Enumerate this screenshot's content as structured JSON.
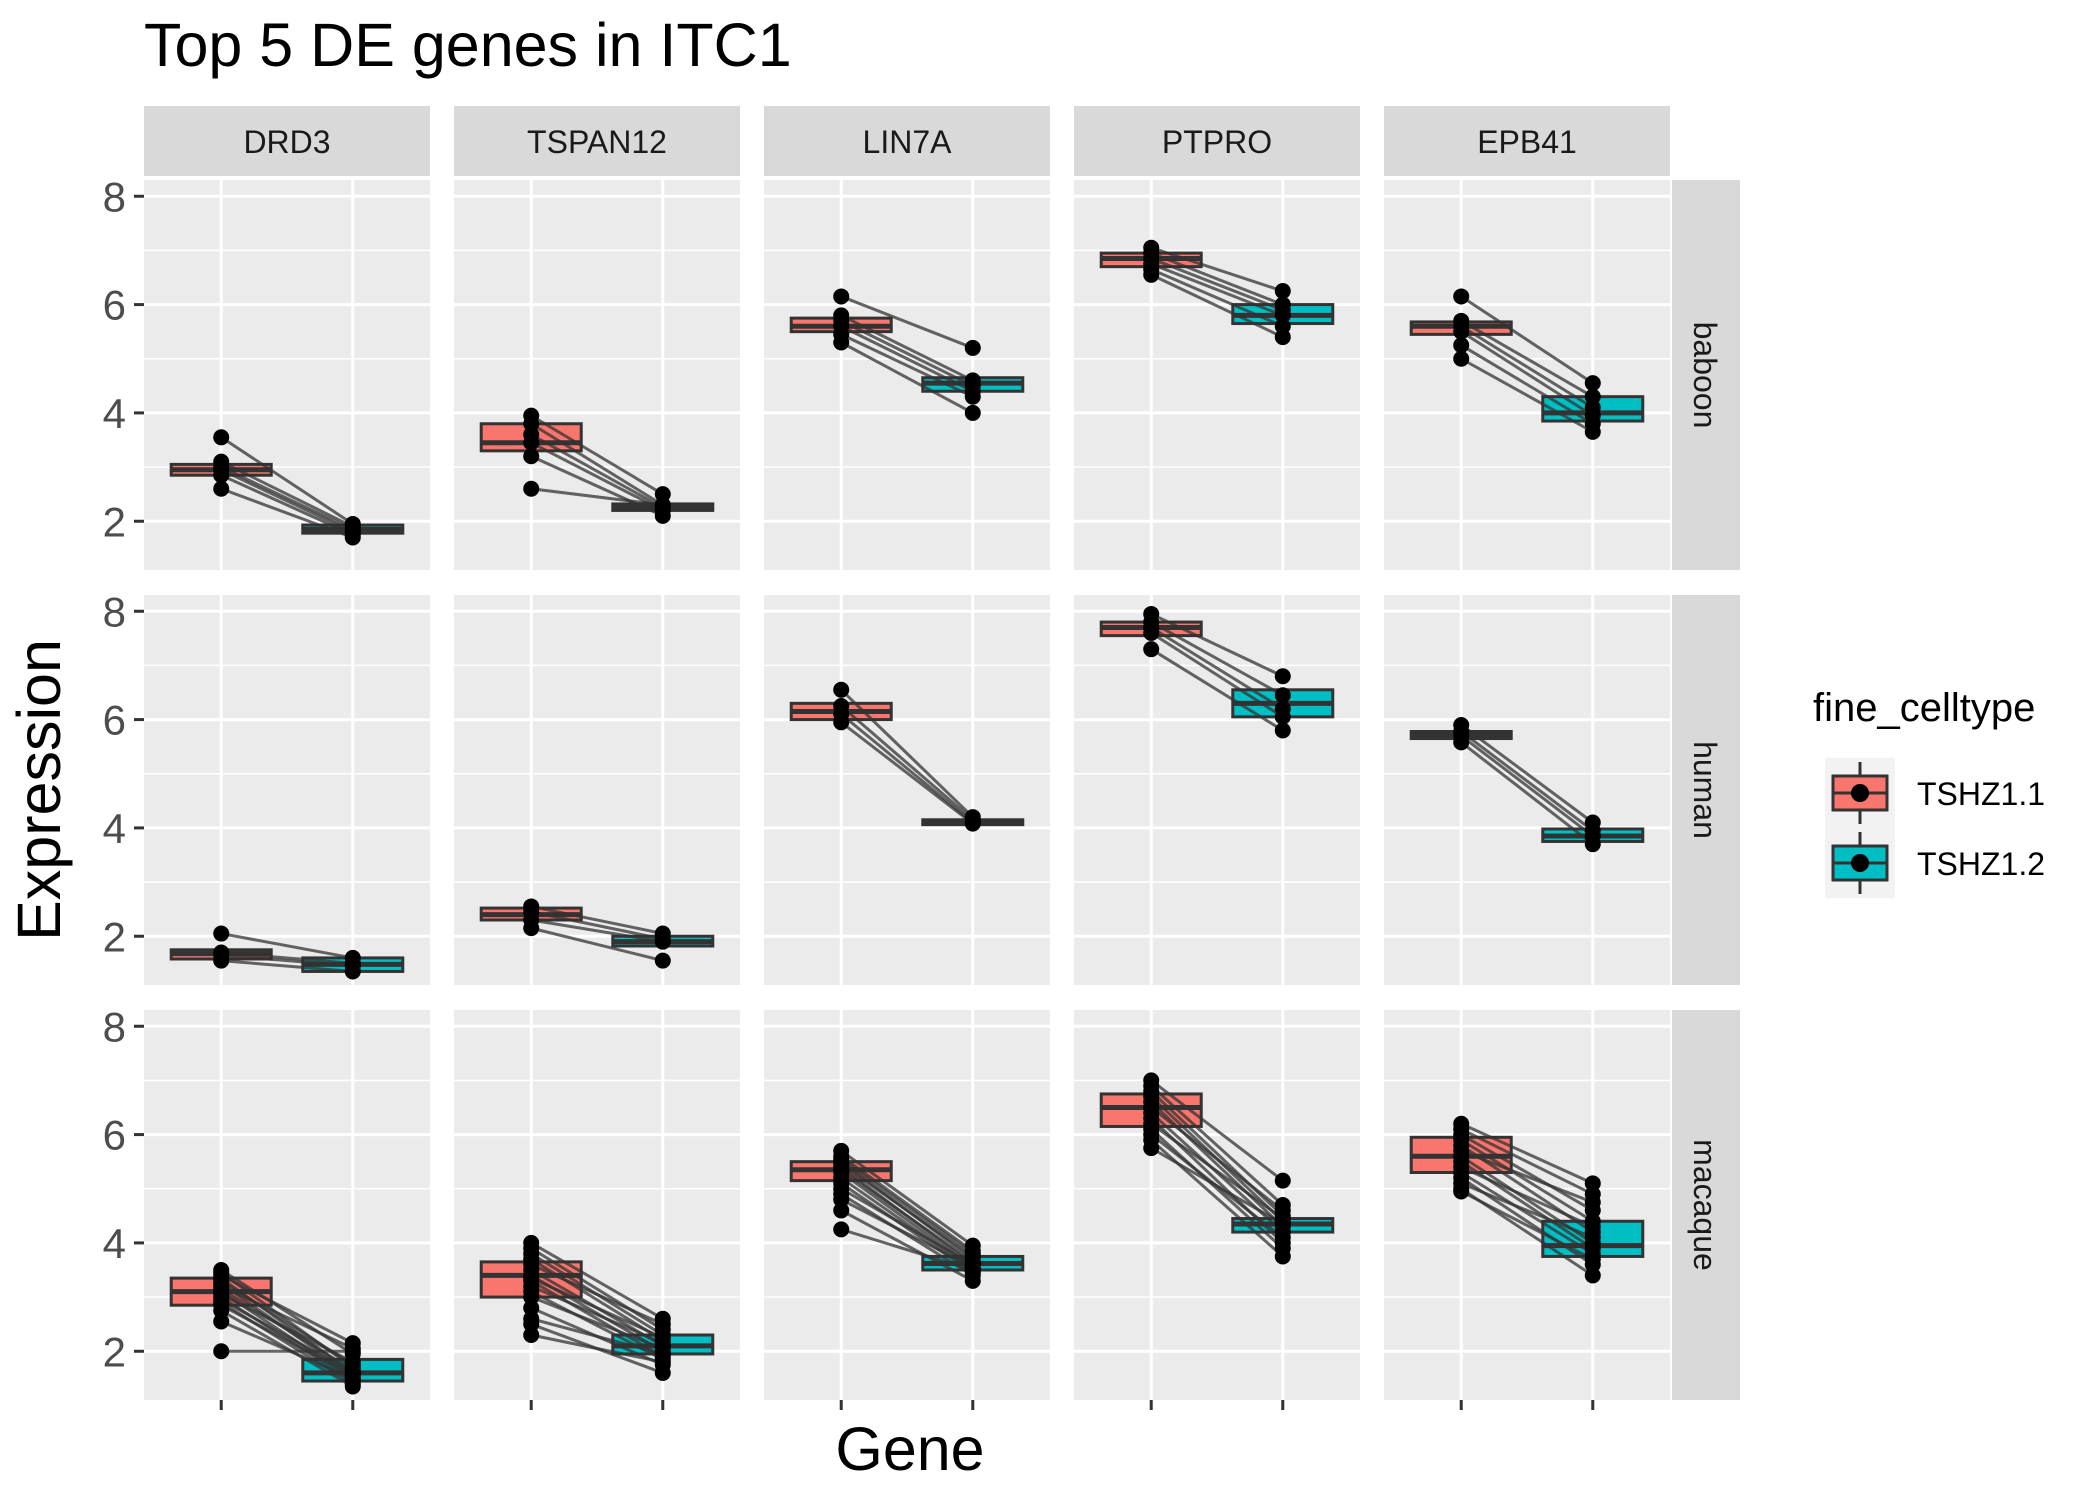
{
  "chart_data": {
    "type": "boxplot",
    "title": "Top 5 DE genes in ITC1",
    "xlabel": "Gene",
    "ylabel": "Expression",
    "ylim": [
      1.1,
      8.3
    ],
    "y_ticks": [
      2,
      4,
      6,
      8
    ],
    "y_tick_labels": [
      "2",
      "4",
      "6",
      "8"
    ],
    "genes": [
      "DRD3",
      "TSPAN12",
      "LIN7A",
      "PTPRO",
      "EPB41"
    ],
    "species": [
      "baboon",
      "human",
      "macaque"
    ],
    "legend": {
      "title": "fine_celltype",
      "position": "right",
      "entries": [
        {
          "label": "TSHZ1.1",
          "color": "#F8766D"
        },
        {
          "label": "TSHZ1.2",
          "color": "#00BFC4"
        }
      ]
    },
    "colors": {
      "panel_bg": "#EBEBEB",
      "strip_bg": "#D9D9D9",
      "grid": "#FFFFFF",
      "box_outline": "#333333",
      "point": "#000000",
      "line": "#333333"
    },
    "panels": {
      "baboon": {
        "DRD3": {
          "box1": {
            "q1": 2.85,
            "median": 2.95,
            "q3": 3.05
          },
          "box2": {
            "q1": 1.78,
            "median": 1.85,
            "q3": 1.93
          },
          "pairs": [
            [
              3.55,
              1.95
            ],
            [
              3.1,
              1.9
            ],
            [
              3.0,
              1.85
            ],
            [
              2.95,
              1.8
            ],
            [
              2.85,
              1.75
            ],
            [
              2.6,
              1.7
            ]
          ]
        },
        "TSPAN12": {
          "box1": {
            "q1": 3.3,
            "median": 3.45,
            "q3": 3.8
          },
          "box2": {
            "q1": 2.2,
            "median": 2.25,
            "q3": 2.32
          },
          "pairs": [
            [
              3.95,
              2.5
            ],
            [
              3.8,
              2.3
            ],
            [
              3.6,
              2.25
            ],
            [
              3.45,
              2.2
            ],
            [
              3.2,
              2.1
            ],
            [
              2.6,
              2.3
            ]
          ]
        },
        "LIN7A": {
          "box1": {
            "q1": 5.5,
            "median": 5.6,
            "q3": 5.75
          },
          "box2": {
            "q1": 4.4,
            "median": 4.55,
            "q3": 4.65
          },
          "pairs": [
            [
              6.15,
              5.2
            ],
            [
              5.8,
              4.6
            ],
            [
              5.7,
              4.5
            ],
            [
              5.6,
              4.4
            ],
            [
              5.45,
              4.3
            ],
            [
              5.3,
              4.0
            ]
          ]
        },
        "PTPRO": {
          "box1": {
            "q1": 6.7,
            "median": 6.85,
            "q3": 6.95
          },
          "box2": {
            "q1": 5.65,
            "median": 5.8,
            "q3": 6.0
          },
          "pairs": [
            [
              7.05,
              6.25
            ],
            [
              6.95,
              6.0
            ],
            [
              6.85,
              5.9
            ],
            [
              6.75,
              5.8
            ],
            [
              6.65,
              5.6
            ],
            [
              6.55,
              5.4
            ]
          ]
        },
        "EPB41": {
          "box1": {
            "q1": 5.45,
            "median": 5.6,
            "q3": 5.68
          },
          "box2": {
            "q1": 3.85,
            "median": 4.0,
            "q3": 4.3
          },
          "pairs": [
            [
              6.15,
              4.55
            ],
            [
              5.7,
              4.3
            ],
            [
              5.6,
              4.1
            ],
            [
              5.5,
              3.95
            ],
            [
              5.25,
              3.8
            ],
            [
              5.0,
              3.65
            ]
          ]
        }
      },
      "human": {
        "DRD3": {
          "box1": {
            "q1": 1.58,
            "median": 1.68,
            "q3": 1.75
          },
          "box2": {
            "q1": 1.35,
            "median": 1.48,
            "q3": 1.6
          },
          "pairs": [
            [
              2.05,
              1.6
            ],
            [
              1.7,
              1.5
            ],
            [
              1.65,
              1.45
            ],
            [
              1.55,
              1.35
            ]
          ]
        },
        "TSPAN12": {
          "box1": {
            "q1": 2.3,
            "median": 2.4,
            "q3": 2.52
          },
          "box2": {
            "q1": 1.82,
            "median": 1.9,
            "q3": 2.0
          },
          "pairs": [
            [
              2.55,
              2.05
            ],
            [
              2.45,
              1.95
            ],
            [
              2.3,
              1.9
            ],
            [
              2.15,
              1.55
            ]
          ]
        },
        "LIN7A": {
          "box1": {
            "q1": 6.0,
            "median": 6.15,
            "q3": 6.3
          },
          "box2": {
            "q1": 4.06,
            "median": 4.1,
            "q3": 4.15
          },
          "pairs": [
            [
              6.55,
              4.2
            ],
            [
              6.25,
              4.15
            ],
            [
              6.1,
              4.1
            ],
            [
              5.95,
              4.08
            ]
          ]
        },
        "PTPRO": {
          "box1": {
            "q1": 7.55,
            "median": 7.7,
            "q3": 7.8
          },
          "box2": {
            "q1": 6.05,
            "median": 6.3,
            "q3": 6.55
          },
          "pairs": [
            [
              7.95,
              6.8
            ],
            [
              7.8,
              6.45
            ],
            [
              7.7,
              6.2
            ],
            [
              7.6,
              6.05
            ],
            [
              7.3,
              5.8
            ]
          ]
        },
        "EPB41": {
          "box1": {
            "q1": 5.65,
            "median": 5.72,
            "q3": 5.78
          },
          "box2": {
            "q1": 3.75,
            "median": 3.85,
            "q3": 3.98
          },
          "pairs": [
            [
              5.9,
              4.1
            ],
            [
              5.78,
              3.95
            ],
            [
              5.7,
              3.85
            ],
            [
              5.58,
              3.7
            ]
          ]
        }
      },
      "macaque": {
        "DRD3": {
          "box1": {
            "q1": 2.85,
            "median": 3.1,
            "q3": 3.35
          },
          "box2": {
            "q1": 1.45,
            "median": 1.6,
            "q3": 1.85
          },
          "pairs": [
            [
              3.5,
              1.95
            ],
            [
              3.45,
              1.7
            ],
            [
              3.4,
              2.15
            ],
            [
              3.35,
              1.6
            ],
            [
              3.3,
              1.75
            ],
            [
              3.25,
              1.55
            ],
            [
              3.2,
              2.05
            ],
            [
              3.15,
              1.65
            ],
            [
              3.1,
              1.5
            ],
            [
              3.05,
              1.8
            ],
            [
              3.0,
              1.45
            ],
            [
              2.95,
              1.6
            ],
            [
              2.9,
              1.4
            ],
            [
              2.85,
              1.55
            ],
            [
              2.75,
              1.35
            ],
            [
              2.55,
              1.5
            ],
            [
              2.0,
              2.0
            ]
          ]
        },
        "TSPAN12": {
          "box1": {
            "q1": 3.0,
            "median": 3.4,
            "q3": 3.65
          },
          "box2": {
            "q1": 1.95,
            "median": 2.1,
            "q3": 2.3
          },
          "pairs": [
            [
              4.0,
              2.6
            ],
            [
              3.9,
              2.4
            ],
            [
              3.8,
              2.3
            ],
            [
              3.7,
              2.2
            ],
            [
              3.6,
              2.5
            ],
            [
              3.5,
              2.1
            ],
            [
              3.4,
              2.0
            ],
            [
              3.35,
              2.25
            ],
            [
              3.3,
              1.9
            ],
            [
              3.2,
              2.15
            ],
            [
              3.1,
              1.85
            ],
            [
              3.0,
              2.05
            ],
            [
              2.8,
              1.75
            ],
            [
              2.6,
              1.95
            ],
            [
              2.5,
              1.6
            ],
            [
              2.3,
              1.8
            ]
          ]
        },
        "LIN7A": {
          "box1": {
            "q1": 5.15,
            "median": 5.35,
            "q3": 5.5
          },
          "box2": {
            "q1": 3.5,
            "median": 3.62,
            "q3": 3.75
          },
          "pairs": [
            [
              5.7,
              3.95
            ],
            [
              5.6,
              3.85
            ],
            [
              5.55,
              3.8
            ],
            [
              5.5,
              3.7
            ],
            [
              5.45,
              3.75
            ],
            [
              5.4,
              3.6
            ],
            [
              5.35,
              3.65
            ],
            [
              5.3,
              3.55
            ],
            [
              5.2,
              3.5
            ],
            [
              5.1,
              3.45
            ],
            [
              5.0,
              3.6
            ],
            [
              4.9,
              3.4
            ],
            [
              4.8,
              3.55
            ],
            [
              4.6,
              3.3
            ],
            [
              4.25,
              3.5
            ]
          ]
        },
        "PTPRO": {
          "box1": {
            "q1": 6.15,
            "median": 6.5,
            "q3": 6.75
          },
          "box2": {
            "q1": 4.2,
            "median": 4.35,
            "q3": 4.45
          },
          "pairs": [
            [
              7.0,
              5.15
            ],
            [
              6.9,
              4.7
            ],
            [
              6.8,
              4.5
            ],
            [
              6.7,
              4.4
            ],
            [
              6.6,
              4.3
            ],
            [
              6.5,
              4.6
            ],
            [
              6.4,
              4.2
            ],
            [
              6.3,
              4.0
            ],
            [
              6.2,
              4.45
            ],
            [
              6.1,
              3.9
            ],
            [
              6.0,
              4.1
            ],
            [
              5.9,
              3.75
            ],
            [
              5.75,
              4.35
            ]
          ]
        },
        "EPB41": {
          "box1": {
            "q1": 5.3,
            "median": 5.6,
            "q3": 5.95
          },
          "box2": {
            "q1": 3.75,
            "median": 3.95,
            "q3": 4.4
          },
          "pairs": [
            [
              6.2,
              5.1
            ],
            [
              6.1,
              4.9
            ],
            [
              6.0,
              4.6
            ],
            [
              5.9,
              4.4
            ],
            [
              5.8,
              4.2
            ],
            [
              5.7,
              4.75
            ],
            [
              5.6,
              4.0
            ],
            [
              5.5,
              3.9
            ],
            [
              5.4,
              4.3
            ],
            [
              5.3,
              3.8
            ],
            [
              5.2,
              3.6
            ],
            [
              5.1,
              4.1
            ],
            [
              5.0,
              3.4
            ],
            [
              4.95,
              3.7
            ]
          ]
        }
      }
    }
  }
}
